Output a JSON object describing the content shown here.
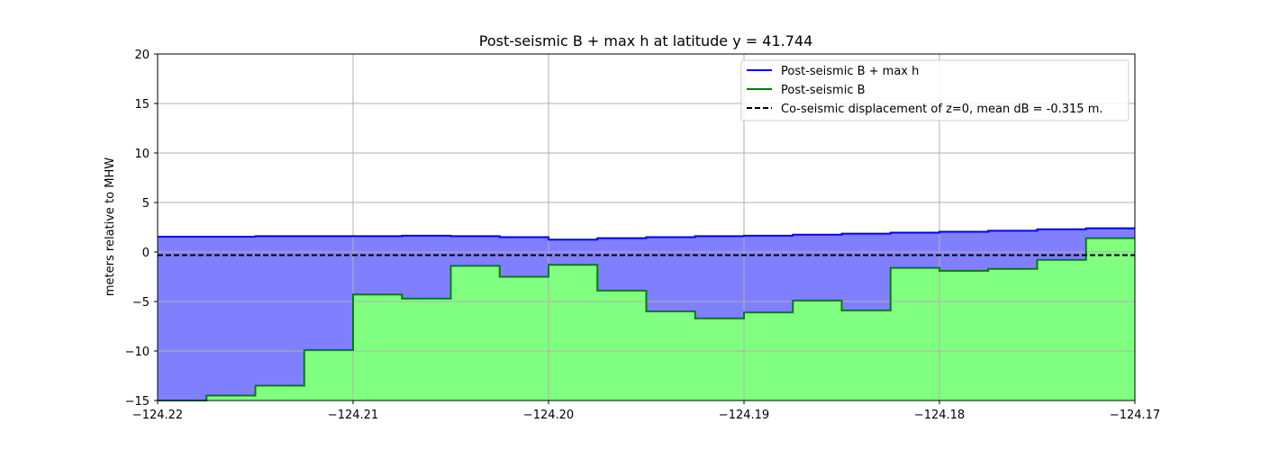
{
  "chart_data": {
    "type": "area",
    "title": "Post-seismic B + max h at latitude y = 41.744",
    "xlabel": "",
    "ylabel": "meters relative to MHW",
    "xlim": [
      -124.22,
      -124.17
    ],
    "ylim": [
      -15,
      20
    ],
    "xticks": [
      -124.22,
      -124.21,
      -124.2,
      -124.19,
      -124.18,
      -124.17
    ],
    "xtick_labels": [
      "−124.22",
      "−124.21",
      "−124.20",
      "−124.19",
      "−124.18",
      "−124.17"
    ],
    "yticks": [
      -15,
      -10,
      -5,
      0,
      5,
      10,
      15,
      20
    ],
    "ytick_labels": [
      "−15",
      "−10",
      "−5",
      "0",
      "5",
      "10",
      "15",
      "20"
    ],
    "grid": true,
    "legend_position": "top-right",
    "step_edges": [
      -124.22,
      -124.2175,
      -124.215,
      -124.2125,
      -124.21,
      -124.2075,
      -124.205,
      -124.2025,
      -124.2,
      -124.1975,
      -124.195,
      -124.1925,
      -124.19,
      -124.1875,
      -124.185,
      -124.1825,
      -124.18,
      -124.1775,
      -124.175,
      -124.1725,
      -124.17
    ],
    "series": [
      {
        "name": "Post-seismic B + max h",
        "color": "#0000ff",
        "fill_color": "#8080ff",
        "values": [
          1.55,
          1.55,
          1.6,
          1.6,
          1.6,
          1.65,
          1.6,
          1.5,
          1.25,
          1.4,
          1.5,
          1.6,
          1.65,
          1.75,
          1.85,
          1.95,
          2.05,
          2.15,
          2.3,
          2.4
        ]
      },
      {
        "name": "Post-seismic B",
        "color": "#008000",
        "fill_color": "#80ff80",
        "values": [
          -16.0,
          -14.5,
          -13.5,
          -9.9,
          -4.3,
          -4.7,
          -1.4,
          -2.5,
          -1.3,
          -3.9,
          -6.0,
          -6.7,
          -6.1,
          -4.9,
          -5.9,
          -1.6,
          -1.9,
          -1.7,
          -0.8,
          1.4
        ]
      },
      {
        "name": "Co-seismic displacement of z=0, mean dB = -0.315 m.",
        "color": "#000000",
        "style": "dashed",
        "constant": -0.315
      }
    ]
  }
}
